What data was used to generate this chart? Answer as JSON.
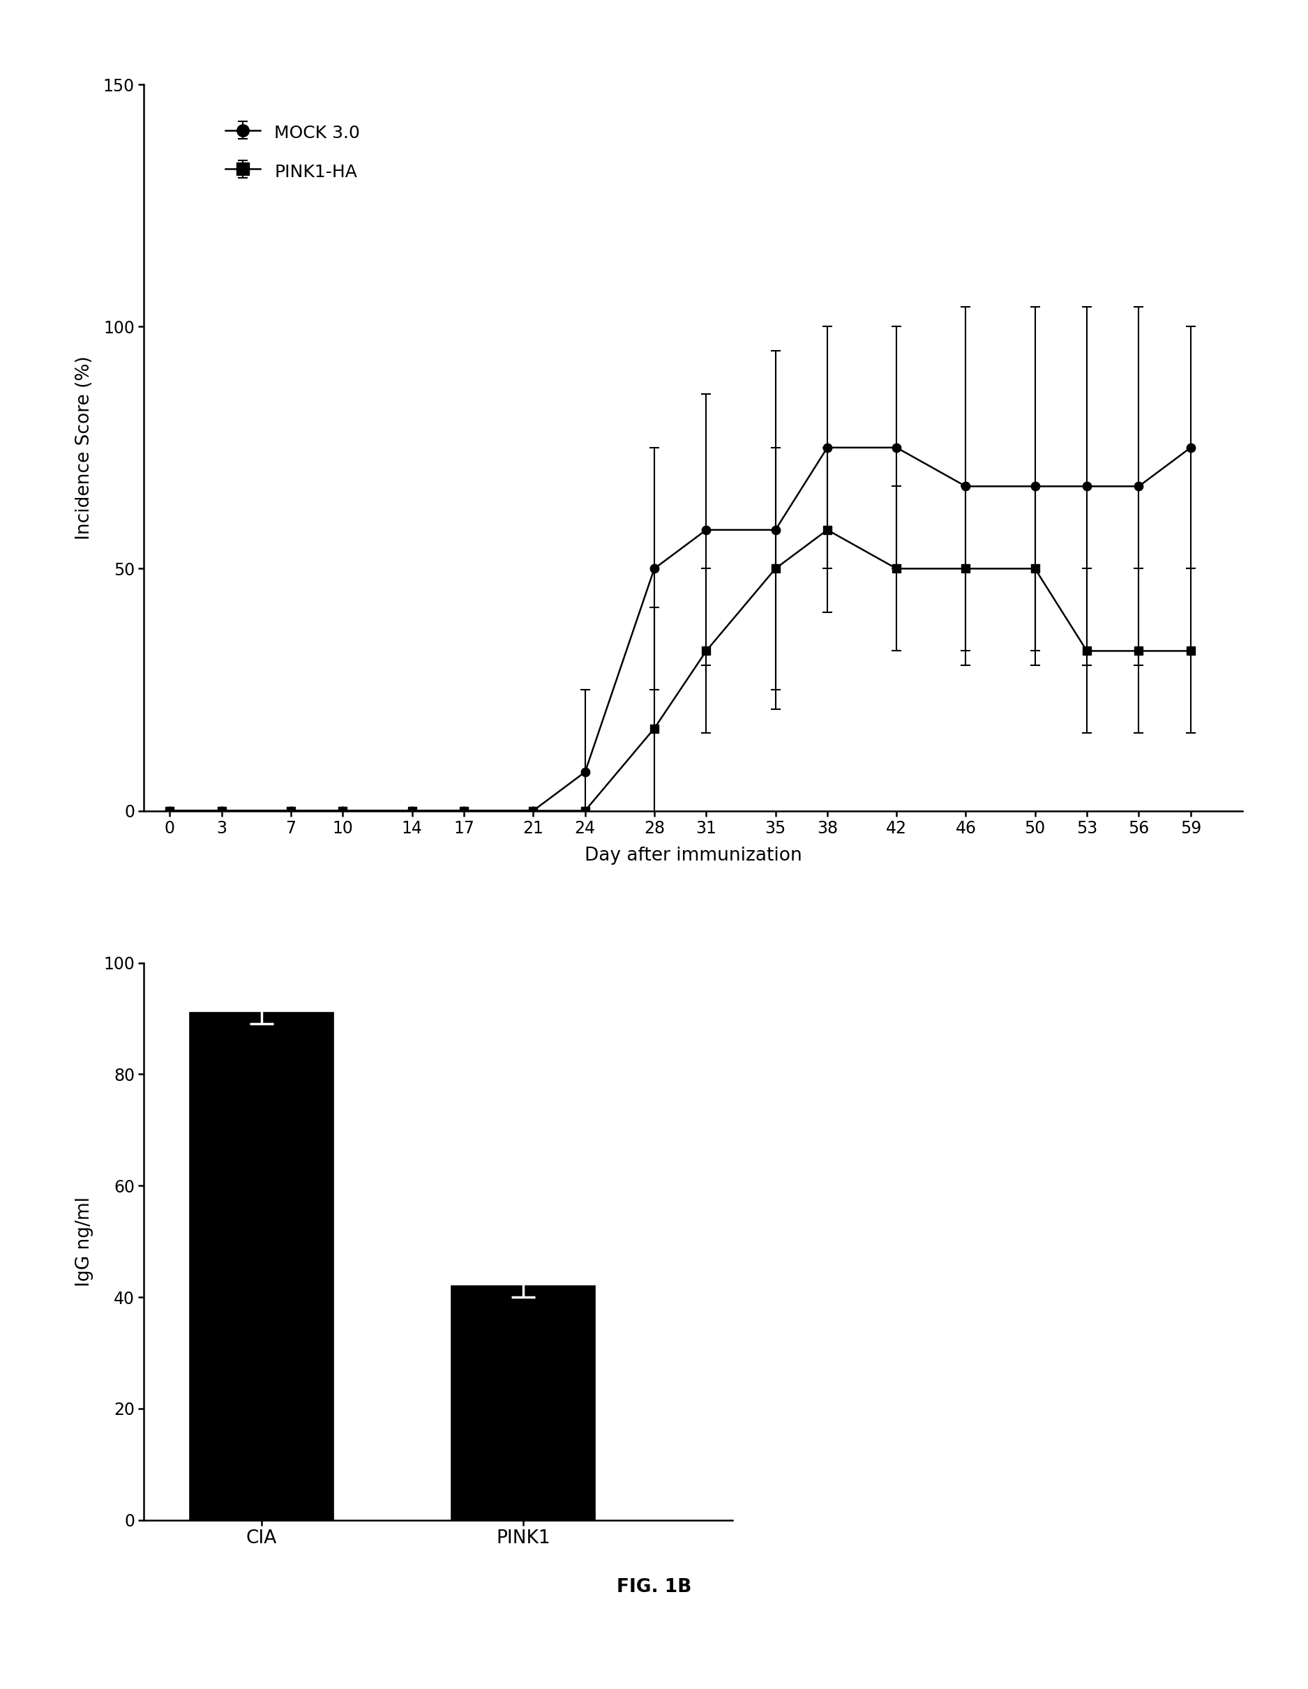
{
  "line_chart": {
    "xlabel": "Day after immunization",
    "ylabel": "Incidence Score (%)",
    "ylim": [
      0,
      150
    ],
    "yticks": [
      0,
      50,
      100,
      150
    ],
    "xtick_labels": [
      "0",
      "3",
      "7",
      "10",
      "14",
      "17",
      "21",
      "24",
      "28",
      "31",
      "35",
      "38",
      "42",
      "46",
      "50",
      "53",
      "56",
      "59"
    ],
    "xtick_values": [
      0,
      3,
      7,
      10,
      14,
      17,
      21,
      24,
      28,
      31,
      35,
      38,
      42,
      46,
      50,
      53,
      56,
      59
    ],
    "mock_y": [
      0,
      0,
      0,
      0,
      0,
      0,
      0,
      8,
      50,
      58,
      58,
      75,
      75,
      67,
      67,
      67,
      67,
      75
    ],
    "mock_err": [
      0,
      0,
      0,
      0,
      0,
      0,
      0,
      17,
      25,
      28,
      37,
      25,
      25,
      37,
      37,
      37,
      37,
      25
    ],
    "pink1_y": [
      0,
      0,
      0,
      0,
      0,
      0,
      0,
      0,
      17,
      33,
      50,
      58,
      50,
      50,
      50,
      33,
      33,
      33
    ],
    "pink1_err": [
      0,
      0,
      0,
      0,
      0,
      0,
      0,
      0,
      25,
      17,
      25,
      17,
      17,
      17,
      17,
      17,
      17,
      17
    ],
    "legend_mock": "MOCK 3.0",
    "legend_pink1": "PINK1-HA"
  },
  "bar_chart": {
    "ylabel": "IgG ng/ml",
    "ylim": [
      0,
      100
    ],
    "yticks": [
      0,
      20,
      40,
      60,
      80,
      100
    ],
    "categories": [
      "CIA",
      "PINK1"
    ],
    "values": [
      91,
      42
    ],
    "errors": [
      2,
      2
    ],
    "bar_color": "#000000",
    "bar_width": 0.55
  },
  "fig_label": "FIG. 1B",
  "background_color": "#ffffff"
}
